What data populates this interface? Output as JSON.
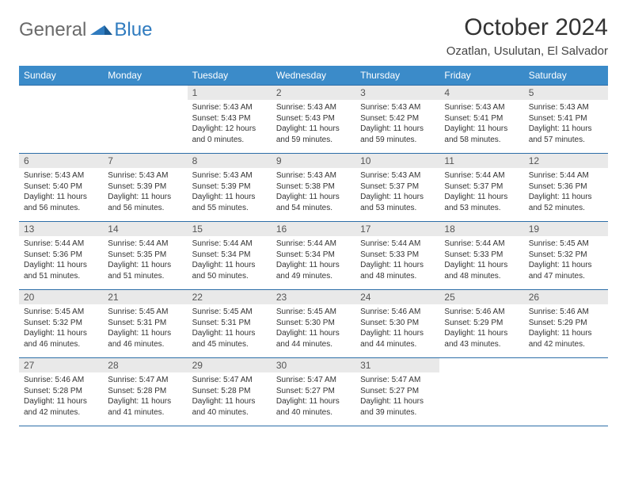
{
  "brand": {
    "part1": "General",
    "part2": "Blue"
  },
  "title": "October 2024",
  "location": "Ozatlan, Usulutan, El Salvador",
  "colors": {
    "header_bg": "#3b8bc9",
    "header_text": "#ffffff",
    "daynum_bg": "#e9e9e9",
    "border": "#2d6ea8",
    "brand_blue": "#2f7bbf",
    "brand_gray": "#6a6a6a"
  },
  "weekdays": [
    "Sunday",
    "Monday",
    "Tuesday",
    "Wednesday",
    "Thursday",
    "Friday",
    "Saturday"
  ],
  "weeks": [
    [
      {
        "n": "",
        "sr": "",
        "ss": "",
        "dl": ""
      },
      {
        "n": "",
        "sr": "",
        "ss": "",
        "dl": ""
      },
      {
        "n": "1",
        "sr": "Sunrise: 5:43 AM",
        "ss": "Sunset: 5:43 PM",
        "dl": "Daylight: 12 hours and 0 minutes."
      },
      {
        "n": "2",
        "sr": "Sunrise: 5:43 AM",
        "ss": "Sunset: 5:43 PM",
        "dl": "Daylight: 11 hours and 59 minutes."
      },
      {
        "n": "3",
        "sr": "Sunrise: 5:43 AM",
        "ss": "Sunset: 5:42 PM",
        "dl": "Daylight: 11 hours and 59 minutes."
      },
      {
        "n": "4",
        "sr": "Sunrise: 5:43 AM",
        "ss": "Sunset: 5:41 PM",
        "dl": "Daylight: 11 hours and 58 minutes."
      },
      {
        "n": "5",
        "sr": "Sunrise: 5:43 AM",
        "ss": "Sunset: 5:41 PM",
        "dl": "Daylight: 11 hours and 57 minutes."
      }
    ],
    [
      {
        "n": "6",
        "sr": "Sunrise: 5:43 AM",
        "ss": "Sunset: 5:40 PM",
        "dl": "Daylight: 11 hours and 56 minutes."
      },
      {
        "n": "7",
        "sr": "Sunrise: 5:43 AM",
        "ss": "Sunset: 5:39 PM",
        "dl": "Daylight: 11 hours and 56 minutes."
      },
      {
        "n": "8",
        "sr": "Sunrise: 5:43 AM",
        "ss": "Sunset: 5:39 PM",
        "dl": "Daylight: 11 hours and 55 minutes."
      },
      {
        "n": "9",
        "sr": "Sunrise: 5:43 AM",
        "ss": "Sunset: 5:38 PM",
        "dl": "Daylight: 11 hours and 54 minutes."
      },
      {
        "n": "10",
        "sr": "Sunrise: 5:43 AM",
        "ss": "Sunset: 5:37 PM",
        "dl": "Daylight: 11 hours and 53 minutes."
      },
      {
        "n": "11",
        "sr": "Sunrise: 5:44 AM",
        "ss": "Sunset: 5:37 PM",
        "dl": "Daylight: 11 hours and 53 minutes."
      },
      {
        "n": "12",
        "sr": "Sunrise: 5:44 AM",
        "ss": "Sunset: 5:36 PM",
        "dl": "Daylight: 11 hours and 52 minutes."
      }
    ],
    [
      {
        "n": "13",
        "sr": "Sunrise: 5:44 AM",
        "ss": "Sunset: 5:36 PM",
        "dl": "Daylight: 11 hours and 51 minutes."
      },
      {
        "n": "14",
        "sr": "Sunrise: 5:44 AM",
        "ss": "Sunset: 5:35 PM",
        "dl": "Daylight: 11 hours and 51 minutes."
      },
      {
        "n": "15",
        "sr": "Sunrise: 5:44 AM",
        "ss": "Sunset: 5:34 PM",
        "dl": "Daylight: 11 hours and 50 minutes."
      },
      {
        "n": "16",
        "sr": "Sunrise: 5:44 AM",
        "ss": "Sunset: 5:34 PM",
        "dl": "Daylight: 11 hours and 49 minutes."
      },
      {
        "n": "17",
        "sr": "Sunrise: 5:44 AM",
        "ss": "Sunset: 5:33 PM",
        "dl": "Daylight: 11 hours and 48 minutes."
      },
      {
        "n": "18",
        "sr": "Sunrise: 5:44 AM",
        "ss": "Sunset: 5:33 PM",
        "dl": "Daylight: 11 hours and 48 minutes."
      },
      {
        "n": "19",
        "sr": "Sunrise: 5:45 AM",
        "ss": "Sunset: 5:32 PM",
        "dl": "Daylight: 11 hours and 47 minutes."
      }
    ],
    [
      {
        "n": "20",
        "sr": "Sunrise: 5:45 AM",
        "ss": "Sunset: 5:32 PM",
        "dl": "Daylight: 11 hours and 46 minutes."
      },
      {
        "n": "21",
        "sr": "Sunrise: 5:45 AM",
        "ss": "Sunset: 5:31 PM",
        "dl": "Daylight: 11 hours and 46 minutes."
      },
      {
        "n": "22",
        "sr": "Sunrise: 5:45 AM",
        "ss": "Sunset: 5:31 PM",
        "dl": "Daylight: 11 hours and 45 minutes."
      },
      {
        "n": "23",
        "sr": "Sunrise: 5:45 AM",
        "ss": "Sunset: 5:30 PM",
        "dl": "Daylight: 11 hours and 44 minutes."
      },
      {
        "n": "24",
        "sr": "Sunrise: 5:46 AM",
        "ss": "Sunset: 5:30 PM",
        "dl": "Daylight: 11 hours and 44 minutes."
      },
      {
        "n": "25",
        "sr": "Sunrise: 5:46 AM",
        "ss": "Sunset: 5:29 PM",
        "dl": "Daylight: 11 hours and 43 minutes."
      },
      {
        "n": "26",
        "sr": "Sunrise: 5:46 AM",
        "ss": "Sunset: 5:29 PM",
        "dl": "Daylight: 11 hours and 42 minutes."
      }
    ],
    [
      {
        "n": "27",
        "sr": "Sunrise: 5:46 AM",
        "ss": "Sunset: 5:28 PM",
        "dl": "Daylight: 11 hours and 42 minutes."
      },
      {
        "n": "28",
        "sr": "Sunrise: 5:47 AM",
        "ss": "Sunset: 5:28 PM",
        "dl": "Daylight: 11 hours and 41 minutes."
      },
      {
        "n": "29",
        "sr": "Sunrise: 5:47 AM",
        "ss": "Sunset: 5:28 PM",
        "dl": "Daylight: 11 hours and 40 minutes."
      },
      {
        "n": "30",
        "sr": "Sunrise: 5:47 AM",
        "ss": "Sunset: 5:27 PM",
        "dl": "Daylight: 11 hours and 40 minutes."
      },
      {
        "n": "31",
        "sr": "Sunrise: 5:47 AM",
        "ss": "Sunset: 5:27 PM",
        "dl": "Daylight: 11 hours and 39 minutes."
      },
      {
        "n": "",
        "sr": "",
        "ss": "",
        "dl": ""
      },
      {
        "n": "",
        "sr": "",
        "ss": "",
        "dl": ""
      }
    ]
  ]
}
